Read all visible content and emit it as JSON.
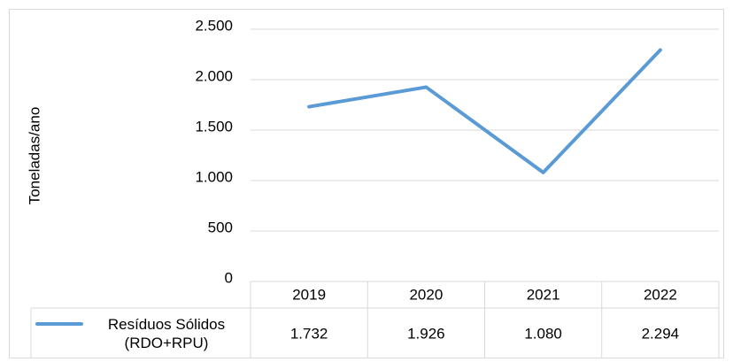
{
  "chart_data": {
    "type": "line",
    "y_label": "Toneladas/ano",
    "categories": [
      "2019",
      "2020",
      "2021",
      "2022"
    ],
    "series": [
      {
        "name": "Resíduos Sólidos (RDO+RPU)",
        "color": "#5b9bd5",
        "values": [
          1732,
          1926,
          1080,
          2294
        ],
        "value_labels": [
          "1.732",
          "1.926",
          "1.080",
          "2.294"
        ]
      }
    ],
    "ylim": [
      0,
      2500
    ],
    "yticks": [
      0,
      500,
      {
        "value": 1000,
        "label": "1.000"
      },
      {
        "value": 1500,
        "label": "1.500"
      },
      {
        "value": 2000,
        "label": "2.000"
      },
      {
        "value": 2500,
        "label": "2.500"
      }
    ],
    "grid": true,
    "data_table": true
  }
}
